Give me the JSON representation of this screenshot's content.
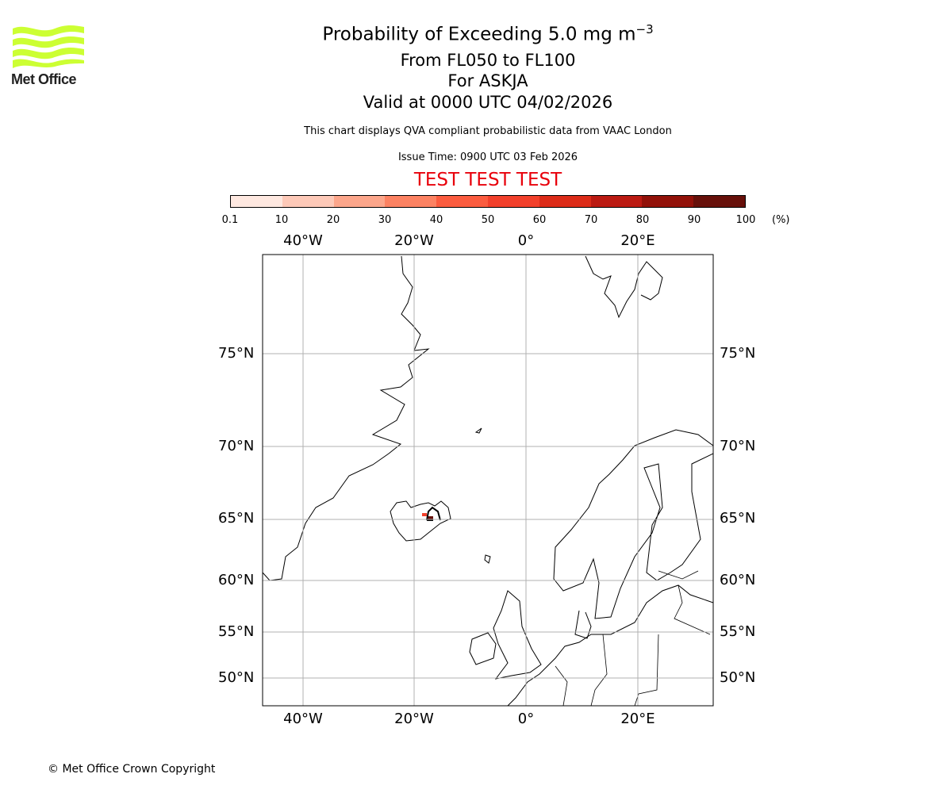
{
  "logo": {
    "text": "Met Office",
    "color": "#ccff33"
  },
  "title": {
    "line1": "Probability of Exceeding 5.0 mg m",
    "line1_sup": "−3",
    "line2": "From FL050 to FL100",
    "line3": "For ASKJA",
    "line4": "Valid at 0000 UTC 04/02/2026"
  },
  "subtitle": "This chart displays QVA compliant probabilistic data from VAAC London",
  "issue_time": "Issue Time: 0900 UTC 03 Feb 2026",
  "test_banner": "TEST TEST TEST",
  "colorbar": {
    "ticks": [
      "0.1",
      "10",
      "20",
      "30",
      "40",
      "50",
      "60",
      "70",
      "80",
      "90",
      "100"
    ],
    "unit": "(%)",
    "colors": [
      "#fee8e0",
      "#fdc9b8",
      "#fca68b",
      "#fc8262",
      "#fb5c3f",
      "#f2402b",
      "#dc2b18",
      "#bb1a12",
      "#921109",
      "#67100a"
    ]
  },
  "map": {
    "lon_labels": [
      "40°W",
      "20°W",
      "0°",
      "20°E"
    ],
    "lat_labels": [
      "75°N",
      "70°N",
      "65°N",
      "60°N",
      "55°N",
      "50°N"
    ],
    "volcano": "ASKJA"
  },
  "copyright": "© Met Office Crown Copyright"
}
